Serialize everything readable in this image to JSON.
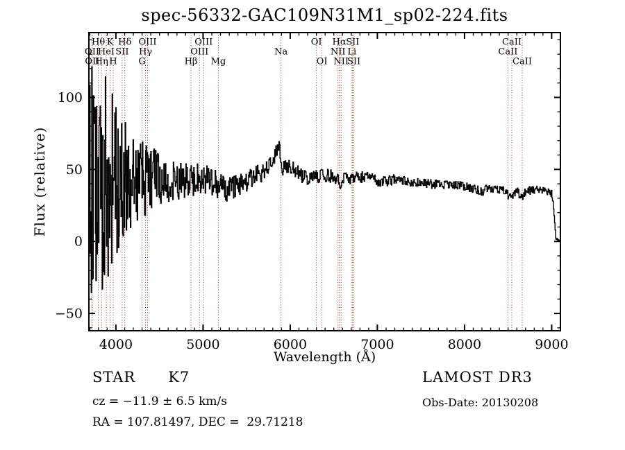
{
  "title": "spec-56332-GAC109N31M1_sp02-224.fits",
  "colors": {
    "background": "#ffffff",
    "spectrum": "#000000",
    "frame": "#000000",
    "line_marker": "#a02c2c"
  },
  "annotations": {
    "class_label": "STAR",
    "subclass": "K7",
    "cz": "cz = −11.9 ± 6.5 km/s",
    "ra_dec": "RA = 107.81497, DEC =  29.71218",
    "survey": "LAMOST DR3",
    "obs_date": "Obs-Date: 20130208"
  },
  "chart_data": {
    "type": "line",
    "title": "spec-56332-GAC109N31M1_sp02-224.fits",
    "xlabel": "Wavelength (Å)",
    "ylabel": "Flux (relative)",
    "xlim": [
      3690,
      9100
    ],
    "ylim": [
      -62,
      145
    ],
    "xticks": [
      4000,
      5000,
      6000,
      7000,
      8000,
      9000
    ],
    "x_minor_step": 100,
    "yticks": [
      -50,
      0,
      50,
      100
    ],
    "y_minor_step": 10,
    "grid": false,
    "series_name": "flux",
    "line_style": "step",
    "sample_step_angstrom": 6,
    "noise_seed": 20130208,
    "continuum_anchors": [
      [
        3692,
        35
      ],
      [
        3700,
        38
      ],
      [
        3780,
        40
      ],
      [
        3850,
        42
      ],
      [
        3950,
        40
      ],
      [
        4050,
        43
      ],
      [
        4150,
        44
      ],
      [
        4250,
        46
      ],
      [
        4350,
        44
      ],
      [
        4450,
        46
      ],
      [
        4550,
        43
      ],
      [
        4650,
        42
      ],
      [
        4750,
        43
      ],
      [
        4850,
        42
      ],
      [
        4950,
        44
      ],
      [
        5050,
        43
      ],
      [
        5150,
        40
      ],
      [
        5250,
        36
      ],
      [
        5350,
        37
      ],
      [
        5450,
        41
      ],
      [
        5550,
        44
      ],
      [
        5650,
        47
      ],
      [
        5750,
        52
      ],
      [
        5820,
        58
      ],
      [
        5865,
        67
      ],
      [
        5885,
        60
      ],
      [
        5900,
        49
      ],
      [
        5930,
        51
      ],
      [
        5980,
        53
      ],
      [
        6030,
        50
      ],
      [
        6100,
        47
      ],
      [
        6200,
        44
      ],
      [
        6300,
        45
      ],
      [
        6400,
        46
      ],
      [
        6500,
        45
      ],
      [
        6540,
        43
      ],
      [
        6563,
        40
      ],
      [
        6590,
        43
      ],
      [
        6700,
        44
      ],
      [
        6800,
        45
      ],
      [
        6900,
        44
      ],
      [
        7000,
        42
      ],
      [
        7100,
        42
      ],
      [
        7200,
        43
      ],
      [
        7300,
        42
      ],
      [
        7400,
        41
      ],
      [
        7500,
        41
      ],
      [
        7600,
        40
      ],
      [
        7700,
        40
      ],
      [
        7800,
        39
      ],
      [
        7900,
        39
      ],
      [
        8000,
        38
      ],
      [
        8100,
        37
      ],
      [
        8200,
        34
      ],
      [
        8260,
        37
      ],
      [
        8350,
        36
      ],
      [
        8450,
        35
      ],
      [
        8500,
        32
      ],
      [
        8540,
        31
      ],
      [
        8600,
        35
      ],
      [
        8660,
        30
      ],
      [
        8700,
        35
      ],
      [
        8800,
        36
      ],
      [
        8900,
        35
      ],
      [
        8970,
        34
      ],
      [
        9000,
        33
      ],
      [
        9015,
        28
      ],
      [
        9030,
        14
      ],
      [
        9045,
        3
      ],
      [
        9060,
        1
      ],
      [
        9096,
        1
      ]
    ],
    "noise_amplitude_anchors": [
      [
        3692,
        92
      ],
      [
        3800,
        85
      ],
      [
        3900,
        72
      ],
      [
        4000,
        55
      ],
      [
        4100,
        45
      ],
      [
        4200,
        34
      ],
      [
        4300,
        30
      ],
      [
        4400,
        22
      ],
      [
        4500,
        18
      ],
      [
        4650,
        15
      ],
      [
        4800,
        12
      ],
      [
        5000,
        10
      ],
      [
        5200,
        9
      ],
      [
        5400,
        8
      ],
      [
        5600,
        7
      ],
      [
        5800,
        6
      ],
      [
        6000,
        5.5
      ],
      [
        6200,
        5
      ],
      [
        6500,
        4.5
      ],
      [
        6800,
        4
      ],
      [
        7200,
        3.5
      ],
      [
        7600,
        3.2
      ],
      [
        8000,
        3
      ],
      [
        8400,
        3.2
      ],
      [
        8700,
        3
      ],
      [
        9000,
        2.5
      ],
      [
        9030,
        1.5
      ],
      [
        9096,
        0.8
      ]
    ],
    "spectral_lines": [
      {
        "label": "OII",
        "wavelength": 3726.0,
        "row": 2
      },
      {
        "label": "OII",
        "wavelength": 3728.8,
        "row": 3
      },
      {
        "label": "Hθ",
        "wavelength": 3798.0,
        "row": 1
      },
      {
        "label": "Hη",
        "wavelength": 3835.4,
        "row": 3
      },
      {
        "label": "HeI",
        "wavelength": 3889.0,
        "row": 2
      },
      {
        "label": "K",
        "wavelength": 3933.7,
        "row": 1
      },
      {
        "label": "H",
        "wavelength": 3968.5,
        "row": 3
      },
      {
        "label": "SII",
        "wavelength": 4071.5,
        "row": 2
      },
      {
        "label": "Hδ",
        "wavelength": 4101.7,
        "row": 1
      },
      {
        "label": "G",
        "wavelength": 4300.4,
        "row": 3
      },
      {
        "label": "Hγ",
        "wavelength": 4340.5,
        "row": 2
      },
      {
        "label": "OIII",
        "wavelength": 4363.2,
        "row": 1
      },
      {
        "label": "Hβ",
        "wavelength": 4861.3,
        "row": 3
      },
      {
        "label": "OIII",
        "wavelength": 4958.9,
        "row": 2
      },
      {
        "label": "OIII",
        "wavelength": 5006.8,
        "row": 1
      },
      {
        "label": "Mg",
        "wavelength": 5175.4,
        "row": 3
      },
      {
        "label": "Na",
        "wavelength": 5893.9,
        "row": 2
      },
      {
        "label": "OI",
        "wavelength": 6300.2,
        "row": 1
      },
      {
        "label": "OI",
        "wavelength": 6363.7,
        "row": 3
      },
      {
        "label": "NII",
        "wavelength": 6548.1,
        "row": 2
      },
      {
        "label": "Hα",
        "wavelength": 6562.8,
        "row": 1
      },
      {
        "label": "NII",
        "wavelength": 6583.5,
        "row": 3
      },
      {
        "label": "Li",
        "wavelength": 6707.8,
        "row": 2
      },
      {
        "label": "SII",
        "wavelength": 6716.4,
        "row": 1
      },
      {
        "label": "SII",
        "wavelength": 6730.8,
        "row": 3
      },
      {
        "label": "CaII",
        "wavelength": 8498.0,
        "row": 2
      },
      {
        "label": "CaII",
        "wavelength": 8542.1,
        "row": 1
      },
      {
        "label": "CaII",
        "wavelength": 8662.1,
        "row": 3
      }
    ]
  }
}
